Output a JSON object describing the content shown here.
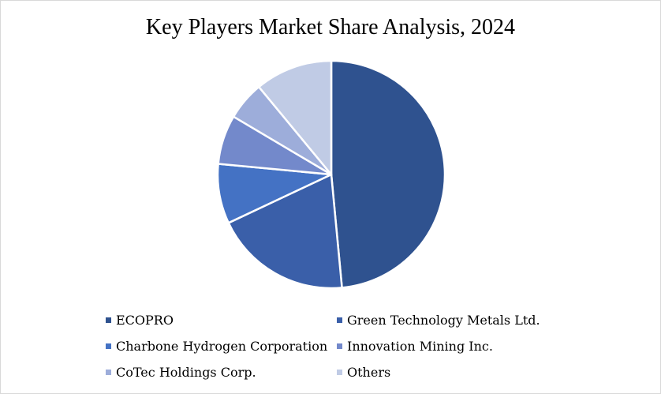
{
  "chart_data": {
    "type": "pie",
    "title": "Key Players Market Share Analysis, 2024",
    "legend_position": "bottom",
    "categories": [
      "ECOPRO",
      "Green Technology Metals Ltd.",
      "Charbone Hydrogen Corporation",
      "Innovation Mining Inc.",
      "CoTec Holdings Corp.",
      "Others"
    ],
    "values": [
      48.5,
      19.5,
      8.5,
      7.0,
      5.5,
      11.0
    ],
    "colors": [
      "#2f528f",
      "#3a5fa9",
      "#4472c4",
      "#7389cb",
      "#9dadda",
      "#c0cbe5"
    ]
  }
}
